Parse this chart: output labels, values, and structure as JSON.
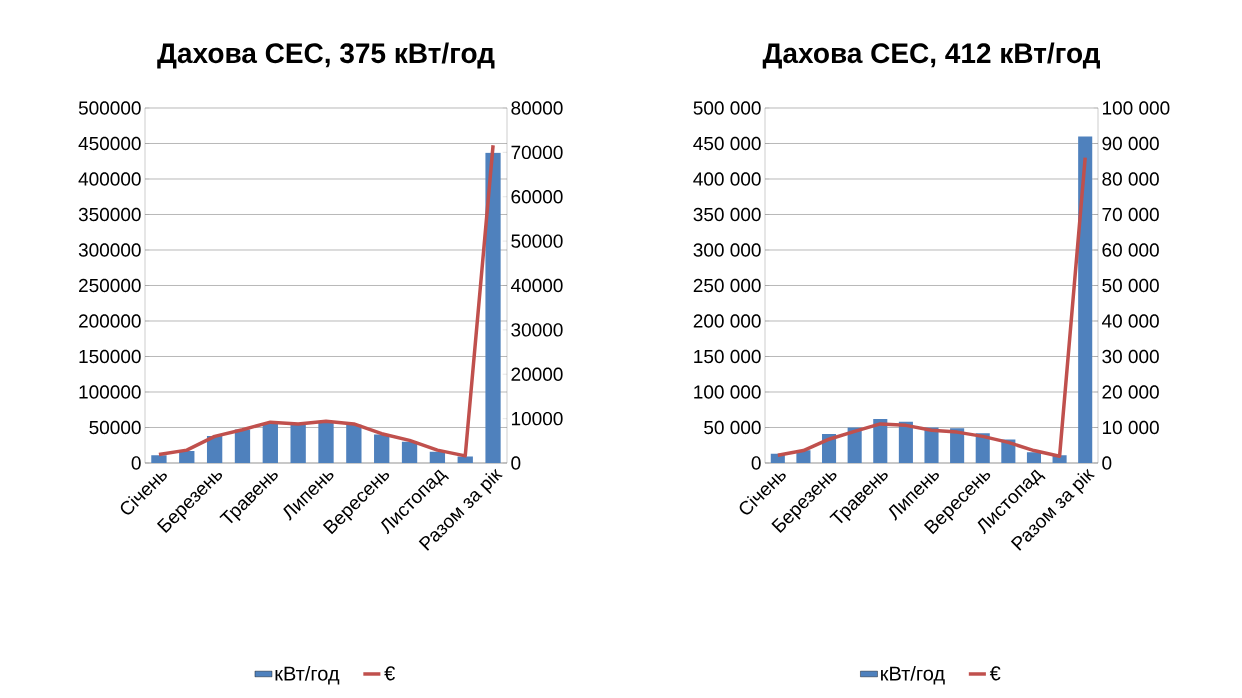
{
  "chart_data": [
    {
      "type": "bar",
      "title": "Дахова СЕС, 375 кВт/год",
      "categories": [
        "Січень",
        null,
        "Березень",
        null,
        "Травень",
        null,
        "Липень",
        null,
        "Вересень",
        null,
        "Листопад",
        null,
        "Разом за рік"
      ],
      "series": [
        {
          "name": "кВт/год",
          "color": "#4f81bd",
          "values": [
            11000,
            17000,
            38000,
            47000,
            56000,
            54000,
            58000,
            54000,
            40000,
            30000,
            16000,
            9000,
            437000
          ]
        },
        {
          "name": "€",
          "type": "line",
          "axis": "y2",
          "color": "#c0504d",
          "values": [
            1900,
            2900,
            6000,
            7500,
            9200,
            8800,
            9400,
            8800,
            6600,
            5100,
            2900,
            1600,
            71600
          ]
        }
      ],
      "ylim": [
        0,
        500000
      ],
      "yticks": [
        0,
        50000,
        100000,
        150000,
        200000,
        250000,
        300000,
        350000,
        400000,
        450000,
        500000
      ],
      "y2lim": [
        0,
        80000
      ],
      "y2ticks": [
        0,
        10000,
        20000,
        30000,
        40000,
        50000,
        60000,
        70000,
        80000
      ],
      "grid": "y",
      "legend": "bottom"
    },
    {
      "type": "bar",
      "title": "Дахова СЕС, 412 кВт/год",
      "categories": [
        "Січень",
        null,
        "Березень",
        null,
        "Травень",
        null,
        "Липень",
        null,
        "Вересень",
        null,
        "Листопад",
        null,
        "Разом за рік"
      ],
      "series": [
        {
          "name": "кВт/год",
          "color": "#4f81bd",
          "values": [
            13000,
            18000,
            41000,
            50000,
            62000,
            58000,
            50000,
            49000,
            42000,
            33000,
            15000,
            11000,
            460000
          ]
        },
        {
          "name": "€",
          "type": "line",
          "axis": "y2",
          "color": "#c0504d",
          "values": [
            2200,
            3500,
            6700,
            8900,
            11000,
            10600,
            9200,
            8700,
            7500,
            5800,
            3500,
            1900,
            86000
          ]
        }
      ],
      "ylim": [
        0,
        500000
      ],
      "yticks": [
        0,
        {
          "value": 50000,
          "label": "50 000"
        },
        {
          "value": 100000,
          "label": "100 000"
        },
        {
          "value": 150000,
          "label": "150 000"
        },
        {
          "value": 200000,
          "label": "200 000"
        },
        {
          "value": 250000,
          "label": "250 000"
        },
        {
          "value": 300000,
          "label": "300 000"
        },
        {
          "value": 350000,
          "label": "350 000"
        },
        {
          "value": 400000,
          "label": "400 000"
        },
        {
          "value": 450000,
          "label": "450 000"
        },
        {
          "value": 500000,
          "label": "500 000"
        }
      ],
      "y2lim": [
        0,
        100000
      ],
      "y2ticks": [
        0,
        {
          "value": 10000,
          "label": "10 000"
        },
        {
          "value": 20000,
          "label": "20 000"
        },
        {
          "value": 30000,
          "label": "30 000"
        },
        {
          "value": 40000,
          "label": "40 000"
        },
        {
          "value": 50000,
          "label": "50 000"
        },
        {
          "value": 60000,
          "label": "60 000"
        },
        {
          "value": 70000,
          "label": "70 000"
        },
        {
          "value": 80000,
          "label": "80 000"
        },
        {
          "value": 90000,
          "label": "90 000"
        },
        {
          "value": 100000,
          "label": "100 000"
        }
      ],
      "grid": "y",
      "legend": "bottom"
    }
  ]
}
